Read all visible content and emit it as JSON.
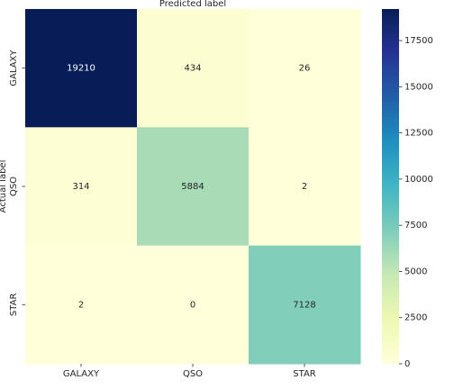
{
  "chart_data": {
    "type": "heatmap",
    "title": "Predicted label",
    "ylabel": "Actual label",
    "xcategories": [
      "GALAXY",
      "QSO",
      "STAR"
    ],
    "ycategories": [
      "GALAXY",
      "QSO",
      "STAR"
    ],
    "values": [
      [
        19210,
        434,
        26
      ],
      [
        314,
        5884,
        2
      ],
      [
        2,
        0,
        7128
      ]
    ],
    "colormap": "YlGnBu",
    "clim": [
      0,
      19210
    ],
    "cticks": [
      0,
      2500,
      5000,
      7500,
      10000,
      12500,
      15000,
      17500
    ]
  }
}
